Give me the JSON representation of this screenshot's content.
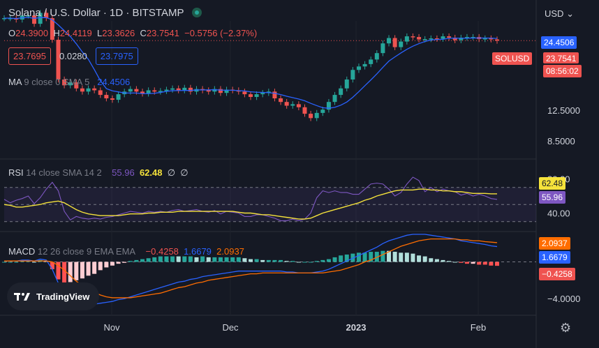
{
  "header": {
    "title": "Solana / U.S. Dollar · 1D · BITSTAMP",
    "ohlc_open_label": "O",
    "ohlc_open": "24.3900",
    "ohlc_high_label": "H",
    "ohlc_high": "24.4119",
    "ohlc_low_label": "L",
    "ohlc_low": "23.3626",
    "ohlc_close_label": "C",
    "ohlc_close": "23.7541",
    "change": "−0.5756 (−2.37%)",
    "sell_price": "23.7695",
    "spread": "0.0280",
    "buy_price": "23.7975"
  },
  "currency_menu": "USD",
  "symbol_tag": "SOLUSD",
  "countdown": "08:56:02",
  "price_axis_labels": {
    "ma_value": "24.4506",
    "last_price": "23.7541",
    "p1": "12.5000",
    "p2": "8.5000"
  },
  "indicators": {
    "ma": {
      "name": "MA",
      "params": "9 close 0 SMA 5",
      "value": "24.4506"
    },
    "rsi": {
      "name": "RSI",
      "params": "14 close SMA 14 2",
      "rsi_value": "55.96",
      "sma_value": "62.48",
      "na1": "∅",
      "na2": "∅",
      "axis_top": "80.00",
      "axis_bottom": "40.00"
    },
    "macd": {
      "name": "MACD",
      "params": "12 26 close 9 EMA EMA",
      "hist": "−0.4258",
      "macd": "1.6679",
      "signal": "2.0937",
      "axis_bottom": "−4.0000"
    }
  },
  "time_axis": [
    "Nov",
    "Dec",
    "2023",
    "Feb"
  ],
  "branding": "TradingView",
  "colors": {
    "bg": "#151924",
    "up": "#26a69a",
    "down": "#ef5350",
    "ma": "#2962ff",
    "rsi": "#7e57c2",
    "rsi_sma": "#f5e23b",
    "macd": "#2962ff",
    "signal": "#ff6d00"
  },
  "chart_data": [
    {
      "type": "candlestick",
      "symbol": "SOLUSD",
      "interval": "1D",
      "x": [
        "Nov",
        "Dec",
        "2023",
        "Feb"
      ],
      "ylim": [
        6,
        30
      ],
      "close_trend": [
        31.0,
        31.0,
        30.5,
        32.0,
        32.0,
        29.0,
        33.0,
        31.0,
        24.0,
        15.0,
        14.0,
        14.5,
        13.5,
        13.0,
        13.5,
        13.2,
        12.5,
        12.0,
        11.8,
        12.6,
        13.0,
        13.4,
        13.0,
        12.7,
        13.2,
        13.0,
        13.1,
        13.3,
        13.5,
        13.2,
        13.6,
        13.0,
        13.4,
        13.2,
        13.0,
        13.4,
        12.8,
        13.3,
        13.2,
        13.0,
        12.6,
        12.2,
        12.6,
        12.8,
        13.0,
        12.0,
        11.5,
        11.0,
        11.2,
        10.8,
        10.0,
        9.5,
        10.1,
        10.5,
        11.5,
        12.5,
        13.5,
        15.0,
        16.8,
        17.5,
        18.0,
        19.0,
        20.5,
        23.0,
        24.5,
        22.0,
        23.5,
        25.0,
        24.8,
        24.1,
        24.2,
        24.4,
        24.3,
        25.0,
        24.6,
        23.9,
        24.6,
        24.8,
        24.8,
        24.2,
        24.4,
        24.1,
        23.75
      ],
      "ma": {
        "name": "MA 9",
        "last": 24.4506
      }
    },
    {
      "type": "line",
      "name": "RSI",
      "ylim": [
        20,
        100
      ],
      "series": [
        {
          "name": "RSI",
          "values": [
            56,
            52,
            55,
            57,
            60,
            51,
            58,
            68,
            76,
            66,
            42,
            32,
            36,
            34,
            33,
            34,
            33,
            35,
            36,
            38,
            40,
            42,
            41,
            40,
            42,
            41,
            42,
            41,
            43,
            44,
            42,
            43,
            44,
            42,
            41,
            43,
            39,
            42,
            41,
            40,
            36,
            36,
            38,
            38,
            36,
            34,
            31,
            31,
            33,
            31,
            33,
            40,
            58,
            66,
            64,
            66,
            64,
            64,
            62,
            62,
            68,
            74,
            75,
            74,
            68,
            60,
            64,
            74,
            82,
            78,
            65,
            70,
            65,
            68,
            66,
            65,
            61,
            63,
            60,
            62,
            60,
            57,
            56
          ]
        },
        {
          "name": "SMA",
          "values": [
            50,
            49,
            47,
            47,
            48,
            49,
            50,
            52,
            53,
            54,
            52,
            48,
            44,
            41,
            39,
            38,
            37,
            37,
            37,
            37,
            38,
            39,
            39,
            39,
            40,
            40,
            41,
            41,
            41,
            42,
            42,
            42,
            42,
            42,
            42,
            42,
            42,
            42,
            42,
            41,
            40,
            40,
            39,
            38,
            38,
            37,
            36,
            35,
            34,
            33,
            33,
            34,
            37,
            40,
            42,
            44,
            46,
            48,
            50,
            52,
            55,
            57,
            60,
            62,
            64,
            66,
            67,
            67,
            67,
            68,
            68,
            67,
            67,
            66,
            66,
            65,
            65,
            64,
            63,
            63,
            63,
            62.5,
            62.48
          ]
        }
      ]
    },
    {
      "type": "bar",
      "name": "MACD",
      "ylim": [
        -5.5,
        3
      ],
      "series": [
        {
          "name": "MACD",
          "values": [
            0.1,
            0.1,
            0.1,
            0.2,
            0.2,
            0.1,
            0.3,
            0.2,
            -0.8,
            -2.3,
            -3.2,
            -3.7,
            -4.1,
            -4.4,
            -4.5,
            -4.6,
            -4.5,
            -4.4,
            -4.3,
            -4.1,
            -4.0,
            -3.8,
            -3.6,
            -3.4,
            -3.2,
            -3.0,
            -2.8,
            -2.6,
            -2.4,
            -2.2,
            -2.1,
            -1.9,
            -1.8,
            -1.6,
            -1.5,
            -1.4,
            -1.3,
            -1.2,
            -1.1,
            -1.0,
            -1.0,
            -1.0,
            -1.0,
            -1.0,
            -1.0,
            -1.0,
            -1.0,
            -1.1,
            -1.1,
            -1.2,
            -1.2,
            -1.2,
            -1.1,
            -1.0,
            -0.8,
            -0.5,
            -0.2,
            0.1,
            0.4,
            0.7,
            1.0,
            1.3,
            1.6,
            2.0,
            2.3,
            2.5,
            2.7,
            2.9,
            3.0,
            3.0,
            3.0,
            2.9,
            2.8,
            2.7,
            2.6,
            2.5,
            2.3,
            2.2,
            2.1,
            2.0,
            1.9,
            1.75,
            1.6679
          ]
        },
        {
          "name": "Signal",
          "values": [
            0.1,
            0.1,
            0.1,
            0.1,
            0.1,
            0.1,
            0.1,
            0.1,
            0.0,
            -0.4,
            -0.9,
            -1.5,
            -2.1,
            -2.6,
            -3.0,
            -3.3,
            -3.6,
            -3.8,
            -3.9,
            -3.9,
            -3.9,
            -3.9,
            -3.8,
            -3.7,
            -3.6,
            -3.5,
            -3.4,
            -3.2,
            -3.0,
            -2.8,
            -2.7,
            -2.5,
            -2.3,
            -2.2,
            -2.0,
            -1.9,
            -1.8,
            -1.7,
            -1.6,
            -1.5,
            -1.4,
            -1.3,
            -1.3,
            -1.2,
            -1.2,
            -1.2,
            -1.2,
            -1.2,
            -1.2,
            -1.2,
            -1.2,
            -1.2,
            -1.2,
            -1.2,
            -1.1,
            -1.0,
            -0.9,
            -0.7,
            -0.5,
            -0.3,
            0.0,
            0.2,
            0.5,
            0.8,
            1.1,
            1.4,
            1.7,
            1.9,
            2.1,
            2.3,
            2.4,
            2.5,
            2.5,
            2.5,
            2.5,
            2.5,
            2.4,
            2.4,
            2.3,
            2.3,
            2.2,
            2.15,
            2.0937
          ]
        }
      ]
    }
  ]
}
